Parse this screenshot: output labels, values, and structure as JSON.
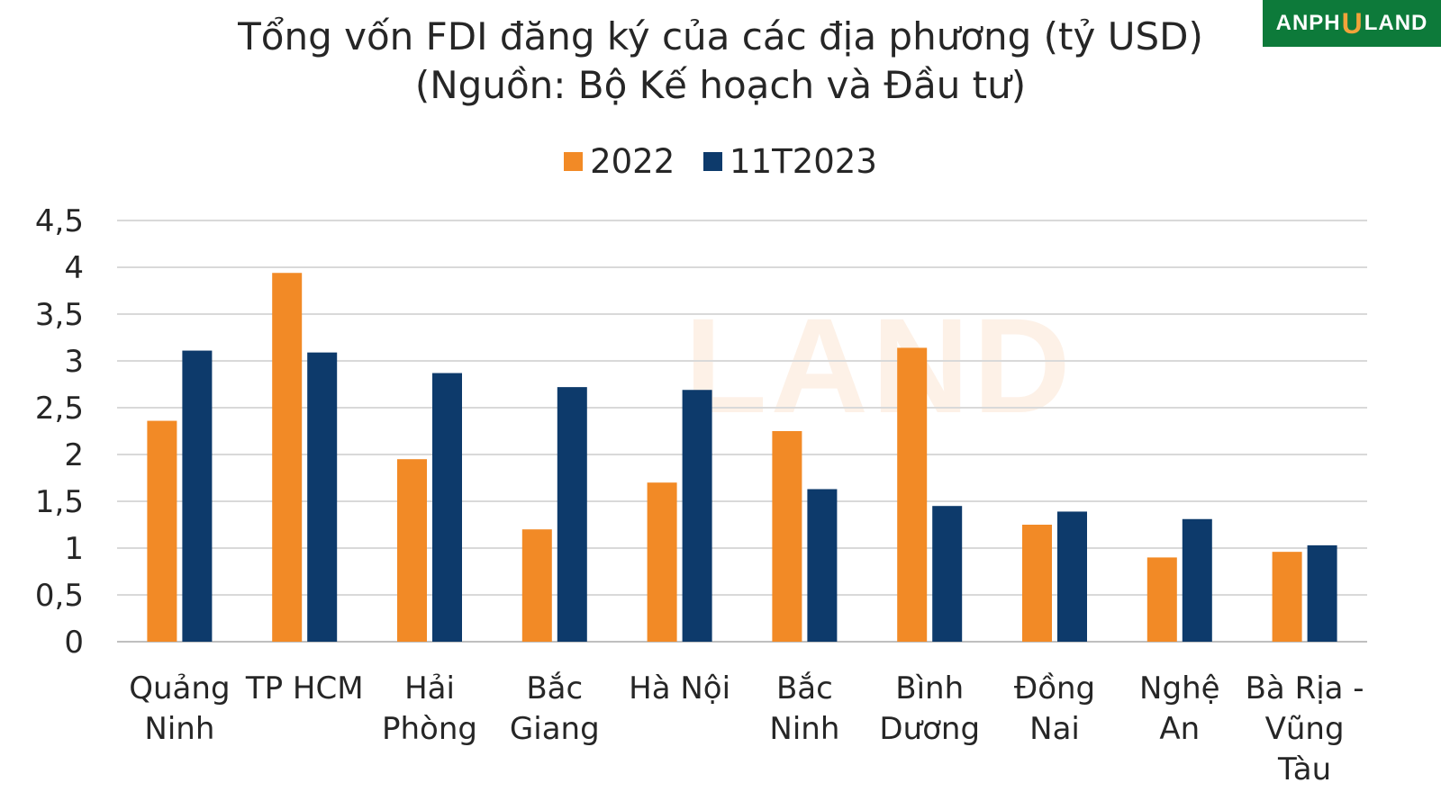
{
  "logo": {
    "prefix": "ANPH",
    "mark": "U",
    "suffix": "LAND"
  },
  "chart_data": {
    "type": "bar",
    "title": "Tổng vốn FDI đăng ký của các địa phương (tỷ USD)",
    "subtitle": "(Nguồn: Bộ Kế hoạch và Đầu tư)",
    "categories": [
      [
        "Quảng",
        "Ninh"
      ],
      [
        "TP HCM"
      ],
      [
        "Hải",
        "Phòng"
      ],
      [
        "Bắc",
        "Giang"
      ],
      [
        "Hà Nội"
      ],
      [
        "Bắc",
        "Ninh"
      ],
      [
        "Bình",
        "Dương"
      ],
      [
        "Đồng",
        "Nai"
      ],
      [
        "Nghệ",
        "An"
      ],
      [
        "Bà Rịa -",
        "Vũng",
        "Tàu"
      ]
    ],
    "series": [
      {
        "name": "2022",
        "color": "#F28A26",
        "values": [
          2.36,
          3.94,
          1.95,
          1.2,
          1.7,
          2.25,
          3.14,
          1.25,
          0.9,
          0.96
        ]
      },
      {
        "name": "11T2023",
        "color": "#0D3A6B",
        "values": [
          3.11,
          3.09,
          2.87,
          2.72,
          2.69,
          1.63,
          1.45,
          1.39,
          1.31,
          1.03
        ]
      }
    ],
    "yticks": [
      "0",
      "0,5",
      "1",
      "1,5",
      "2",
      "2,5",
      "3",
      "3,5",
      "4",
      "4,5"
    ],
    "ylim": [
      0,
      4.5
    ],
    "grid": true,
    "legend": "top-center"
  }
}
